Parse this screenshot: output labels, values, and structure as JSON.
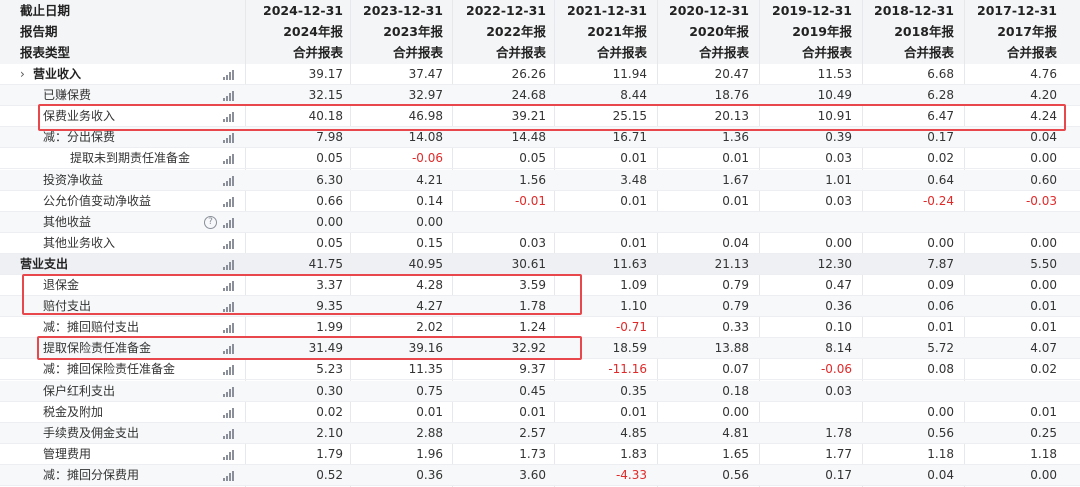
{
  "header": {
    "left_labels": [
      "截止日期",
      "报告期",
      "报表类型"
    ],
    "columns": [
      {
        "date": "2024-12-31",
        "period": "2024年报",
        "type": "合并报表"
      },
      {
        "date": "2023-12-31",
        "period": "2023年报",
        "type": "合并报表"
      },
      {
        "date": "2022-12-31",
        "period": "2022年报",
        "type": "合并报表"
      },
      {
        "date": "2021-12-31",
        "period": "2021年报",
        "type": "合并报表"
      },
      {
        "date": "2020-12-31",
        "period": "2020年报",
        "type": "合并报表"
      },
      {
        "date": "2019-12-31",
        "period": "2019年报",
        "type": "合并报表"
      },
      {
        "date": "2018-12-31",
        "period": "2018年报",
        "type": "合并报表"
      },
      {
        "date": "2017-12-31",
        "period": "2017年报",
        "type": "合并报表"
      }
    ]
  },
  "icons": {
    "chevron": "›",
    "chart": "bar-chart-icon",
    "help": "?"
  },
  "highlight_color": "#e8474b",
  "negative_color": "#e02a2a",
  "rows": [
    {
      "label": "营业收入",
      "level": 0,
      "bold": true,
      "chevron": true,
      "values": [
        "39.17",
        "37.47",
        "26.26",
        "11.94",
        "20.47",
        "11.53",
        "6.68",
        "4.76"
      ]
    },
    {
      "label": "已赚保费",
      "level": 1,
      "values": [
        "32.15",
        "32.97",
        "24.68",
        "8.44",
        "18.76",
        "10.49",
        "6.28",
        "4.20"
      ]
    },
    {
      "label": "保费业务收入",
      "level": 1,
      "values": [
        "40.18",
        "46.98",
        "39.21",
        "25.15",
        "20.13",
        "10.91",
        "6.47",
        "4.24"
      ]
    },
    {
      "label": "减：分出保费",
      "level": 2,
      "values": [
        "7.98",
        "14.08",
        "14.48",
        "16.71",
        "1.36",
        "0.39",
        "0.17",
        "0.04"
      ]
    },
    {
      "label": "提取未到期责任准备金",
      "level": 3,
      "values": [
        "0.05",
        "-0.06",
        "0.05",
        "0.01",
        "0.01",
        "0.03",
        "0.02",
        "0.00"
      ]
    },
    {
      "label": "投资净收益",
      "level": 1,
      "values": [
        "6.30",
        "4.21",
        "1.56",
        "3.48",
        "1.67",
        "1.01",
        "0.64",
        "0.60"
      ]
    },
    {
      "label": "公允价值变动净收益",
      "level": 1,
      "values": [
        "0.66",
        "0.14",
        "-0.01",
        "0.01",
        "0.01",
        "0.03",
        "-0.24",
        "-0.03"
      ]
    },
    {
      "label": "其他收益",
      "level": 1,
      "help": true,
      "values": [
        "0.00",
        "0.00",
        "",
        "",
        "",
        "",
        "",
        ""
      ]
    },
    {
      "label": "其他业务收入",
      "level": 1,
      "values": [
        "0.05",
        "0.15",
        "0.03",
        "0.01",
        "0.04",
        "0.00",
        "0.00",
        "0.00"
      ]
    },
    {
      "label": "营业支出",
      "level": 0,
      "bold": true,
      "section": true,
      "values": [
        "41.75",
        "40.95",
        "30.61",
        "11.63",
        "21.13",
        "12.30",
        "7.87",
        "5.50"
      ]
    },
    {
      "label": "退保金",
      "level": 1,
      "values": [
        "3.37",
        "4.28",
        "3.59",
        "1.09",
        "0.79",
        "0.47",
        "0.09",
        "0.00"
      ]
    },
    {
      "label": "赔付支出",
      "level": 1,
      "values": [
        "9.35",
        "4.27",
        "1.78",
        "1.10",
        "0.79",
        "0.36",
        "0.06",
        "0.01"
      ]
    },
    {
      "label": "减：摊回赔付支出",
      "level": 1,
      "values": [
        "1.99",
        "2.02",
        "1.24",
        "-0.71",
        "0.33",
        "0.10",
        "0.01",
        "0.01"
      ]
    },
    {
      "label": "提取保险责任准备金",
      "level": 1,
      "values": [
        "31.49",
        "39.16",
        "32.92",
        "18.59",
        "13.88",
        "8.14",
        "5.72",
        "4.07"
      ]
    },
    {
      "label": "减：摊回保险责任准备金",
      "level": 1,
      "values": [
        "5.23",
        "11.35",
        "9.37",
        "-11.16",
        "0.07",
        "-0.06",
        "0.08",
        "0.02"
      ]
    },
    {
      "label": "保户红利支出",
      "level": 1,
      "values": [
        "0.30",
        "0.75",
        "0.45",
        "0.35",
        "0.18",
        "0.03",
        "",
        ""
      ]
    },
    {
      "label": "税金及附加",
      "level": 1,
      "values": [
        "0.02",
        "0.01",
        "0.01",
        "0.01",
        "0.00",
        "",
        "0.00",
        "0.01"
      ]
    },
    {
      "label": "手续费及佣金支出",
      "level": 1,
      "values": [
        "2.10",
        "2.88",
        "2.57",
        "4.85",
        "4.81",
        "1.78",
        "0.56",
        "0.25"
      ]
    },
    {
      "label": "管理费用",
      "level": 1,
      "values": [
        "1.79",
        "1.96",
        "1.73",
        "1.83",
        "1.65",
        "1.77",
        "1.18",
        "1.18"
      ]
    },
    {
      "label": "减：摊回分保费用",
      "level": 1,
      "values": [
        "0.52",
        "0.36",
        "3.60",
        "-4.33",
        "0.56",
        "0.17",
        "0.04",
        "0.00"
      ]
    }
  ]
}
